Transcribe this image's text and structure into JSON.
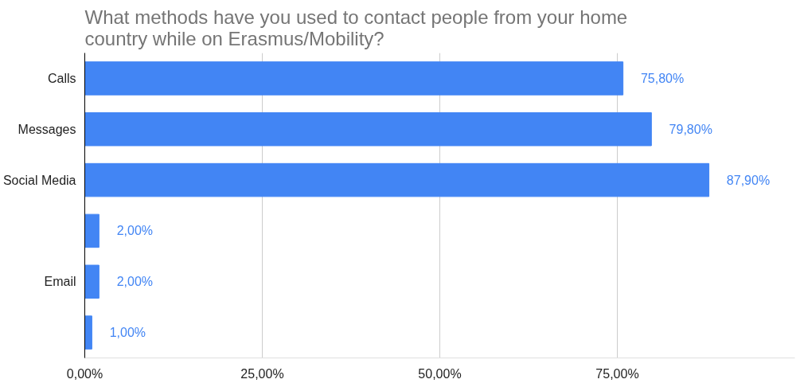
{
  "chart_data": {
    "type": "bar",
    "orientation": "horizontal",
    "title": "What methods have you used to contact people from your home country while on Erasmus/Mobility?",
    "categories": [
      "Calls",
      "Messages",
      "Social Media",
      null,
      "Email",
      null
    ],
    "values": [
      75.8,
      79.8,
      87.9,
      2.0,
      2.0,
      1.0
    ],
    "value_labels": [
      "75,80%",
      "79,80%",
      "87,90%",
      "2,00%",
      "2,00%",
      "1,00%"
    ],
    "color": "#4285f4",
    "xlim": [
      0,
      100
    ],
    "xticks": [
      {
        "value": 0,
        "label": "0,00%"
      },
      {
        "value": 25,
        "label": "25,00%"
      },
      {
        "value": 50,
        "label": "50,00%"
      },
      {
        "value": 75,
        "label": "75,00%"
      }
    ],
    "grid": "x"
  }
}
